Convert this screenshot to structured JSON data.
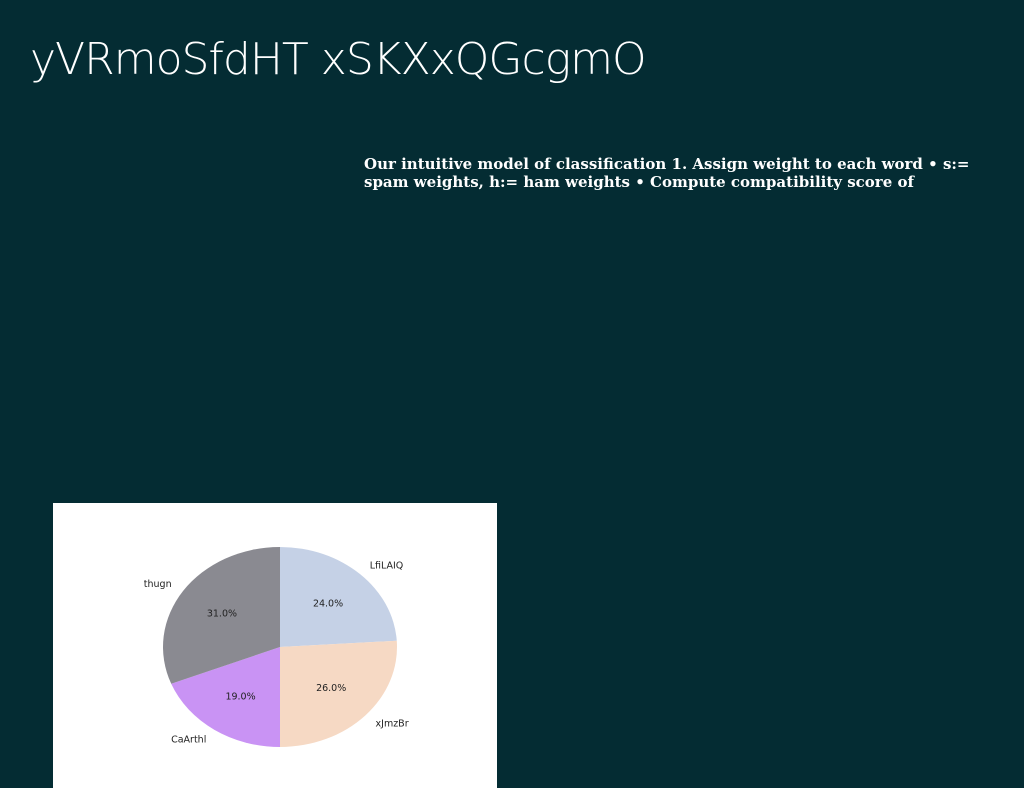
{
  "slide": {
    "title": "yVRmoSfdHT xSKXxQGcgmO",
    "body": "Our intuitive model of classification 1. Assign weight to each word • s:= spam weights, h:= ham weights • Compute compatibility score of"
  },
  "chart_data": {
    "type": "pie",
    "title": "",
    "categories": [
      "LfiLAIQ",
      "xJmzBr",
      "CaArthl",
      "thugn"
    ],
    "values": [
      24.0,
      26.0,
      19.0,
      31.0
    ],
    "colors": [
      "#c5d1e6",
      "#f6d9c4",
      "#c993f4",
      "#8a8a91"
    ],
    "value_labels": [
      "24.0%",
      "26.0%",
      "19.0%",
      "31.0%"
    ],
    "start_angle": "12 o'clock",
    "direction": "clockwise",
    "legend": "none"
  }
}
